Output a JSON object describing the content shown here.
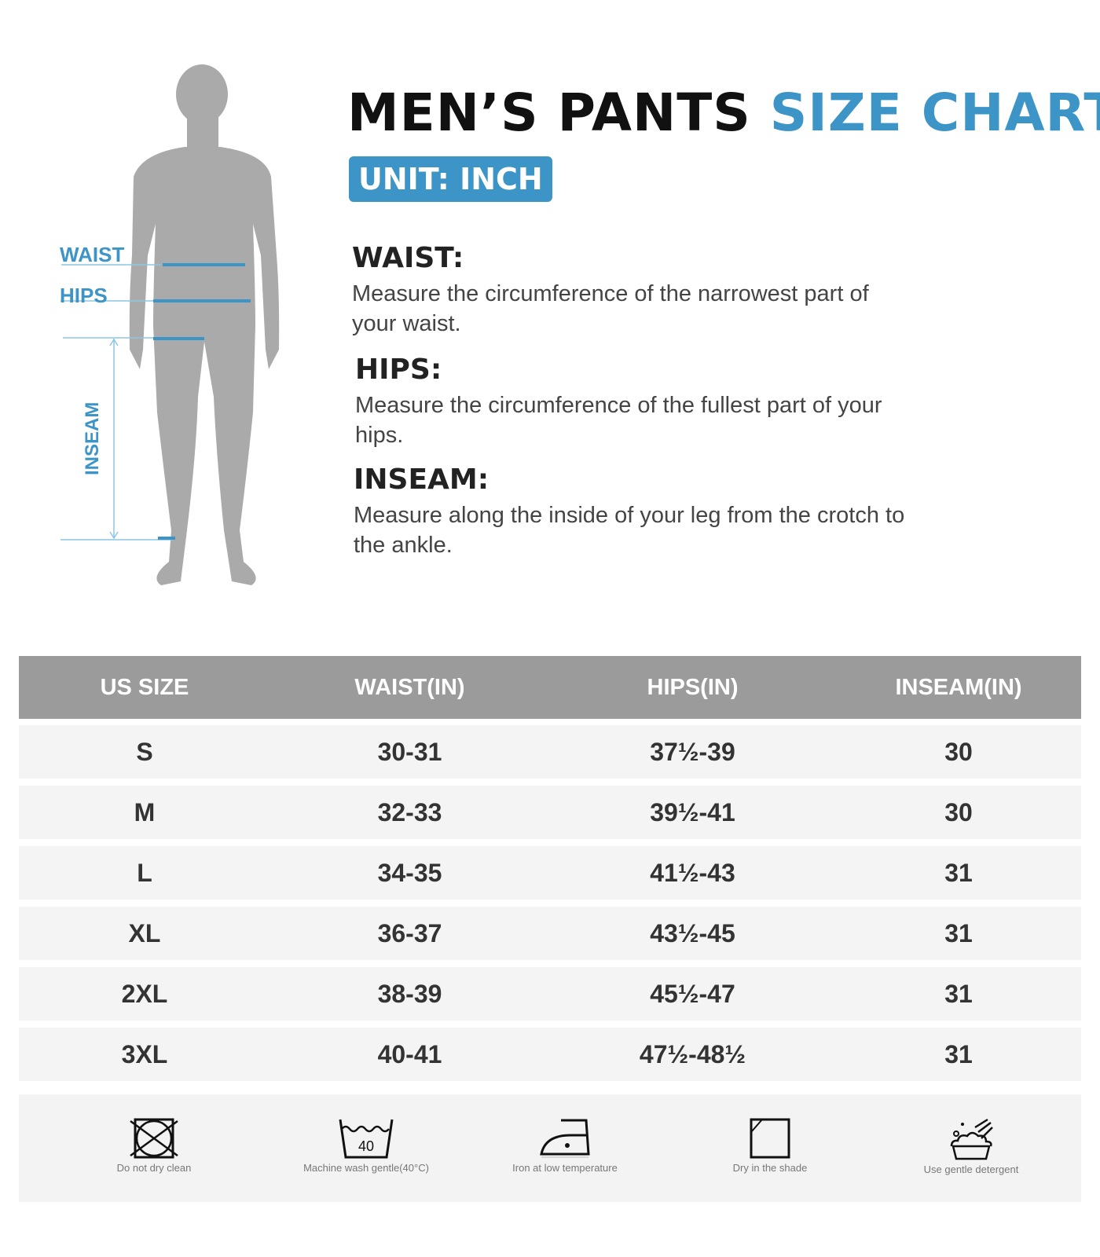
{
  "title": {
    "part1": "MEN’S PANTS",
    "part2": "SIZE CHART"
  },
  "unit": "UNIT: INCH",
  "figure": {
    "waist": "WAIST",
    "hips": "HIPS",
    "inseam": "INSEAM"
  },
  "definitions": [
    {
      "term": "WAIST:",
      "text": "Measure the circumference of the narrowest part of your waist."
    },
    {
      "term": "HIPS:",
      "text": "Measure the circumference of the fullest part of your hips."
    },
    {
      "term": "INSEAM:",
      "text": "Measure along the inside of your leg from the crotch to the ankle."
    }
  ],
  "table": {
    "headers": [
      "US SIZE",
      "WAIST(IN)",
      "HIPS(IN)",
      "INSEAM(IN)"
    ],
    "rows": [
      [
        "S",
        "30-31",
        "37½-39",
        "30"
      ],
      [
        "M",
        "32-33",
        "39½-41",
        "30"
      ],
      [
        "L",
        "34-35",
        "41½-43",
        "31"
      ],
      [
        "XL",
        "36-37",
        "43½-45",
        "31"
      ],
      [
        "2XL",
        "38-39",
        "45½-47",
        "31"
      ],
      [
        "3XL",
        "40-41",
        "47½-48½",
        "31"
      ]
    ]
  },
  "care": [
    {
      "icon": "no-dry-clean-icon",
      "label": "Do not dry clean"
    },
    {
      "icon": "machine-wash-40-icon",
      "label": "Machine wash gentle(40°C)",
      "number": "40"
    },
    {
      "icon": "iron-low-icon",
      "label": "Iron at low temperature"
    },
    {
      "icon": "dry-shade-icon",
      "label": "Dry in the shade"
    },
    {
      "icon": "gentle-detergent-icon",
      "label": "Use gentle detergent"
    }
  ],
  "colors": {
    "accent": "#3d94c6",
    "header": "#9b9b9b",
    "row": "#f4f4f4",
    "figure": "#a9a9a9"
  }
}
